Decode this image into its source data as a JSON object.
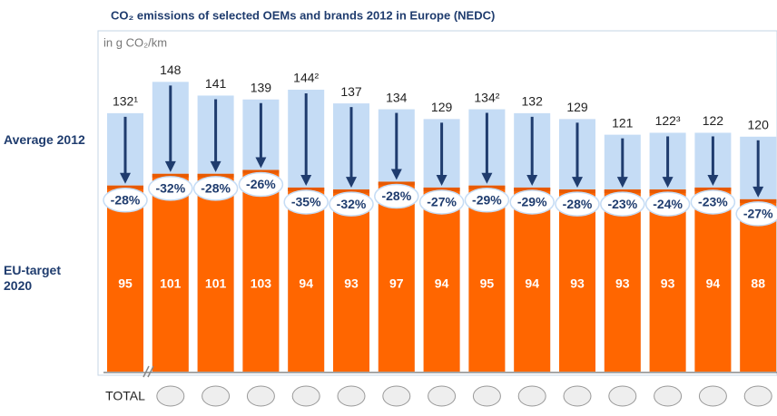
{
  "chart_data": {
    "type": "bar",
    "title": "CO₂ emissions of selected OEMs and brands 2012 in Europe (NEDC)",
    "subtitle": "in g CO₂/km",
    "categories": [
      "TOTAL",
      null,
      null,
      null,
      null,
      null,
      null,
      null,
      null,
      null,
      null,
      null,
      null,
      null,
      null
    ],
    "series": [
      {
        "name": "Average 2012",
        "color": "#c5dcf5",
        "values": [
          132,
          148,
          141,
          139,
          144,
          137,
          134,
          129,
          134,
          132,
          129,
          121,
          122,
          122,
          120
        ],
        "value_labels": [
          "132¹",
          "148",
          "141",
          "139",
          "144²",
          "137",
          "134",
          "129",
          "134²",
          "132",
          "129",
          "121",
          "122³",
          "122",
          "120"
        ]
      },
      {
        "name": "EU-target 2020",
        "color": "#ff6600",
        "values": [
          95,
          101,
          101,
          103,
          94,
          93,
          97,
          94,
          95,
          94,
          93,
          93,
          93,
          94,
          88
        ]
      }
    ],
    "changes": {
      "values": [
        -28,
        -32,
        -28,
        -26,
        -35,
        -32,
        -28,
        -27,
        -29,
        -29,
        -28,
        -23,
        -24,
        -23,
        -27
      ],
      "value_labels": [
        "-28%",
        "-32%",
        "-28%",
        "-26%",
        "-35%",
        "-32%",
        "-28%",
        "-27%",
        "-29%",
        "-29%",
        "-28%",
        "-23%",
        "-24%",
        "-23%",
        "-27%"
      ]
    },
    "ylim": [
      0,
      150
    ]
  }
}
